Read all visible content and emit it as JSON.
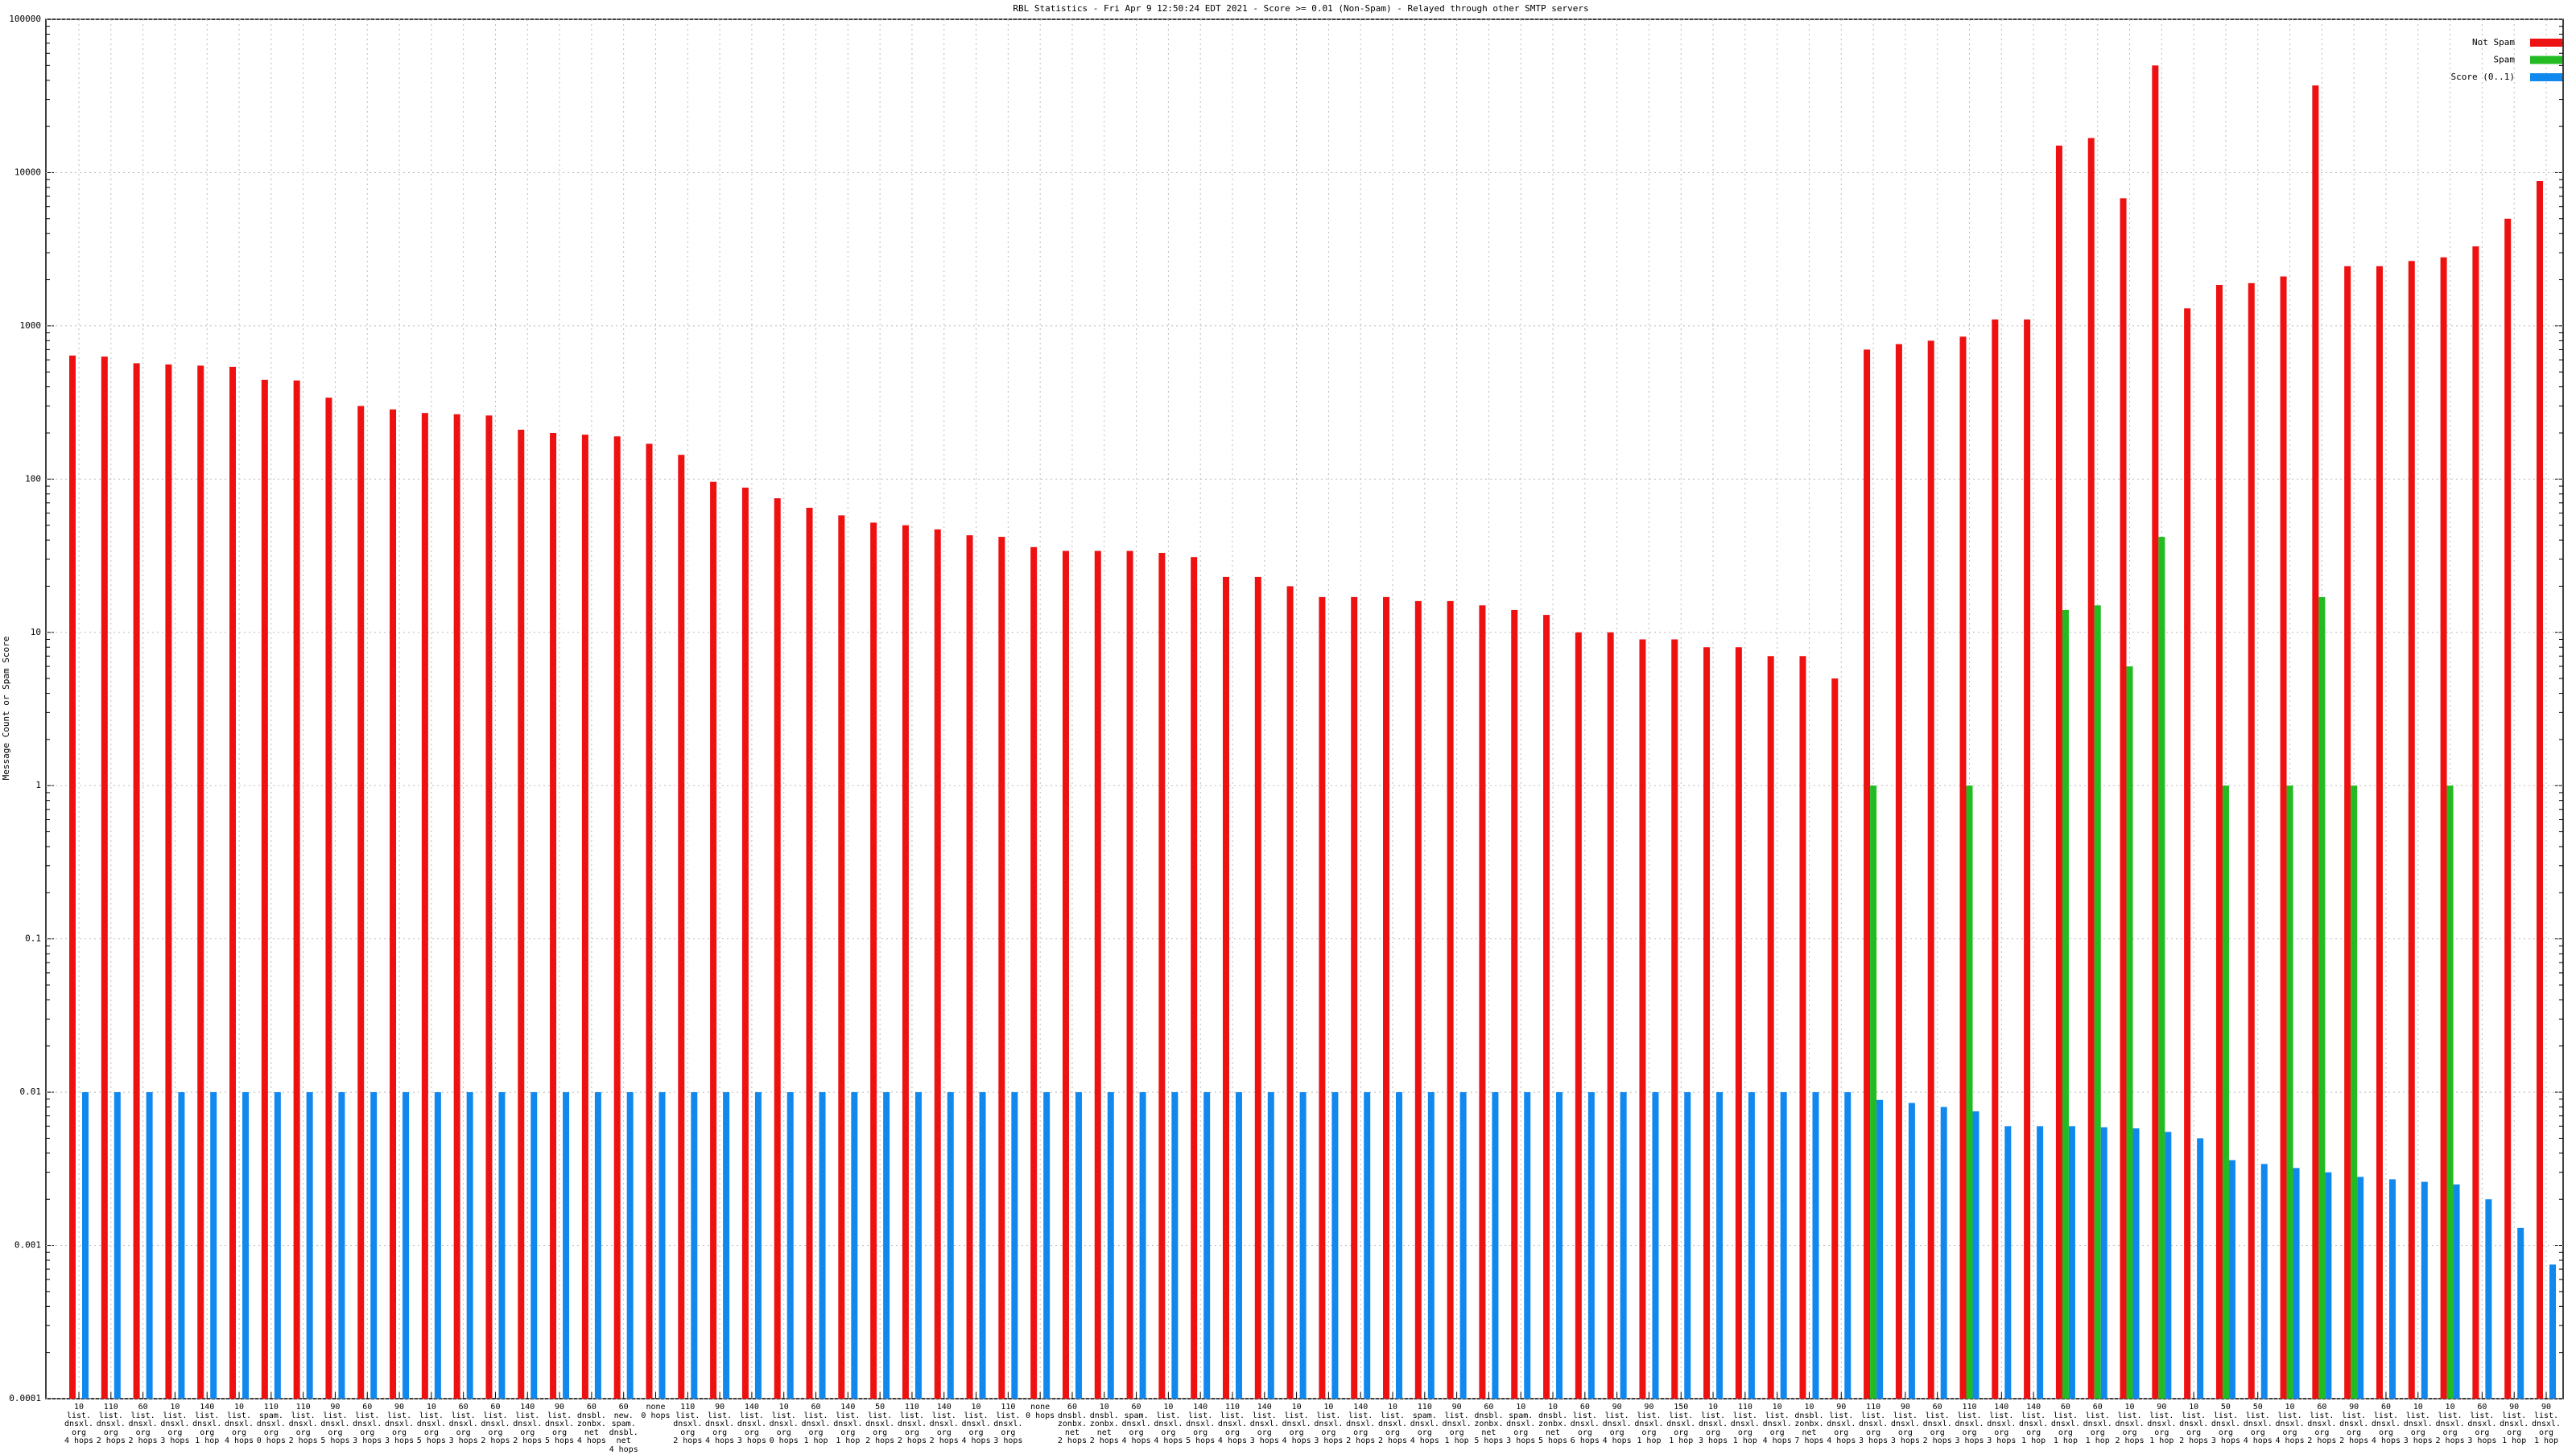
{
  "chart_data": {
    "type": "bar",
    "title": "RBL Statistics - Fri Apr  9 12:50:24 EDT 2021 - Score >= 0.01 (Non-Spam) - Relayed through other SMTP servers",
    "ylabel": "Message Count or Spam Score",
    "log_scale": true,
    "grid": true,
    "legend": "top-right",
    "ylim": [
      0.0001,
      100000
    ],
    "yticks": [
      0.0001,
      0.001,
      0.01,
      0.1,
      1,
      10,
      100,
      1000,
      10000,
      100000
    ],
    "categories": [
      "10\nlist.\ndnsxl.\norg\n4 hops",
      "110\nlist.\ndnsxl.\norg\n2 hops",
      "60\nlist.\ndnsxl.\norg\n2 hops",
      "10\nlist.\ndnsxl.\norg\n3 hops",
      "140\nlist.\ndnsxl.\norg\n1 hop",
      "10\nlist.\ndnsxl.\norg\n4 hops",
      "110\nspam.\ndnsxl.\norg\n0 hops",
      "110\nlist.\ndnsxl.\norg\n2 hops",
      "90\nlist.\ndnsxl.\norg\n5 hops",
      "60\nlist.\ndnsxl.\norg\n3 hops",
      "90\nlist.\ndnsxl.\norg\n3 hops",
      "10\nlist.\ndnsxl.\norg\n5 hops",
      "60\nlist.\ndnsxl.\norg\n3 hops",
      "60\nlist.\ndnsxl.\norg\n2 hops",
      "140\nlist.\ndnsxl.\norg\n2 hops",
      "90\nlist.\ndnsxl.\norg\n5 hops",
      "60\ndnsbl.\nzonbx.\nnet\n4 hops",
      "60\nnew.\nspam.\ndnsbl.\nnet\n4 hops",
      "none\n0 hops",
      "110\nlist.\ndnsxl.\norg\n2 hops",
      "90\nlist.\ndnsxl.\norg\n4 hops",
      "140\nlist.\ndnsxl.\norg\n3 hops",
      "10\nlist.\ndnsxl.\norg\n0 hops",
      "60\nlist.\ndnsxl.\norg\n1 hop",
      "140\nlist.\ndnsxl.\norg\n1 hop",
      "50\nlist.\ndnsxl.\norg\n2 hops",
      "110\nlist.\ndnsxl.\norg\n2 hops",
      "140\nlist.\ndnsxl.\norg\n2 hops",
      "10\nlist.\ndnsxl.\norg\n4 hops",
      "110\nlist.\ndnsxl.\norg\n3 hops",
      "none\n0 hops",
      "60\ndnsbl.\nzonbx.\nnet\n2 hops",
      "10\ndnsbl.\nzonbx.\nnet\n2 hops",
      "60\nspam.\ndnsxl.\norg\n4 hops",
      "10\nlist.\ndnsxl.\norg\n4 hops",
      "140\nlist.\ndnsxl.\norg\n5 hops",
      "110\nlist.\ndnsxl.\norg\n4 hops",
      "140\nlist.\ndnsxl.\norg\n3 hops",
      "10\nlist.\ndnsxl.\norg\n4 hops",
      "10\nlist.\ndnsxl.\norg\n3 hops",
      "140\nlist.\ndnsxl.\norg\n2 hops",
      "10\nlist.\ndnsxl.\norg\n2 hops",
      "110\nspam.\ndnsxl.\norg\n4 hops",
      "90\nlist.\ndnsxl.\norg\n1 hop",
      "60\ndnsbl.\nzonbx.\nnet\n5 hops",
      "10\nspam.\ndnsxl.\norg\n3 hops",
      "10\ndnsbl.\nzonbx.\nnet\n5 hops",
      "60\nlist.\ndnsxl.\norg\n6 hops",
      "90\nlist.\ndnsxl.\norg\n4 hops",
      "90\nlist.\ndnsxl.\norg\n1 hop",
      "150\nlist.\ndnsxl.\norg\n1 hop",
      "10\nlist.\ndnsxl.\norg\n3 hops",
      "110\nlist.\ndnsxl.\norg\n1 hop",
      "10\nlist.\ndnsxl.\norg\n4 hops",
      "10\ndnsbl.\nzonbx.\nnet\n7 hops",
      "90\nlist.\ndnsxl.\norg\n4 hops",
      "110\nlist.\ndnsxl.\norg\n3 hops",
      "90\nlist.\ndnsxl.\norg\n3 hops",
      "60\nlist.\ndnsxl.\norg\n2 hops",
      "110\nlist.\ndnsxl.\norg\n3 hops",
      "140\nlist.\ndnsxl.\norg\n3 hops",
      "140\nlist.\ndnsxl.\norg\n1 hop",
      "60\nlist.\ndnsxl.\norg\n1 hop",
      "60\nlist.\ndnsxl.\norg\n1 hop",
      "10\nlist.\ndnsxl.\norg\n2 hops",
      "90\nlist.\ndnsxl.\norg\n1 hop",
      "10\nlist.\ndnsxl.\norg\n2 hops",
      "50\nlist.\ndnsxl.\norg\n3 hops",
      "50\nlist.\ndnsxl.\norg\n4 hops",
      "10\nlist.\ndnsxl.\norg\n4 hops",
      "60\nlist.\ndnsxl.\norg\n2 hops",
      "90\nlist.\ndnsxl.\norg\n2 hops",
      "60\nlist.\ndnsxl.\norg\n4 hops",
      "10\nlist.\ndnsxl.\norg\n3 hops",
      "10\nlist.\ndnsxl.\norg\n2 hops",
      "60\nlist.\ndnsxl.\norg\n3 hops",
      "90\nlist.\ndnsxl.\norg\n1 hop",
      "90\nlist.\ndnsxl.\norg\n1 hop"
    ],
    "series": [
      {
        "name": "Not Spam",
        "color": "#ee1111",
        "values": [
          640,
          630,
          570,
          560,
          550,
          540,
          445,
          440,
          340,
          300,
          285,
          270,
          265,
          260,
          210,
          200,
          195,
          190,
          170,
          144,
          96,
          88,
          75,
          65,
          58,
          52,
          50,
          47,
          43,
          42,
          36,
          34,
          34,
          34,
          33,
          31,
          23,
          23,
          20,
          17,
          17,
          17,
          16,
          16,
          15,
          14,
          13,
          10,
          10,
          9,
          9,
          8,
          8,
          7,
          7,
          5,
          700,
          760,
          800,
          850,
          1100,
          1100,
          15000,
          16800,
          6800,
          50000,
          1300,
          1850,
          1900,
          2100,
          37000,
          2450,
          2450,
          2650,
          2800,
          3300,
          5000,
          8800
        ]
      },
      {
        "name": "Spam",
        "color": "#22bb22",
        "values": [
          null,
          null,
          null,
          null,
          null,
          null,
          null,
          null,
          null,
          null,
          null,
          null,
          null,
          null,
          null,
          null,
          null,
          null,
          null,
          null,
          null,
          null,
          null,
          null,
          null,
          null,
          null,
          null,
          null,
          null,
          null,
          null,
          null,
          null,
          null,
          null,
          null,
          null,
          null,
          null,
          null,
          null,
          null,
          null,
          null,
          null,
          null,
          null,
          null,
          null,
          null,
          null,
          null,
          null,
          null,
          null,
          1,
          null,
          null,
          1,
          null,
          null,
          14,
          15,
          6,
          42,
          null,
          1,
          null,
          1,
          17,
          1,
          null,
          null,
          1,
          null,
          null,
          null
        ]
      },
      {
        "name": "Score (0..1)",
        "color": "#1188ee",
        "values": [
          0.01,
          0.01,
          0.01,
          0.01,
          0.01,
          0.01,
          0.01,
          0.01,
          0.01,
          0.01,
          0.01,
          0.01,
          0.01,
          0.01,
          0.01,
          0.01,
          0.01,
          0.01,
          0.01,
          0.01,
          0.01,
          0.01,
          0.01,
          0.01,
          0.01,
          0.01,
          0.01,
          0.01,
          0.01,
          0.01,
          0.01,
          0.01,
          0.01,
          0.01,
          0.01,
          0.01,
          0.01,
          0.01,
          0.01,
          0.01,
          0.01,
          0.01,
          0.01,
          0.01,
          0.01,
          0.01,
          0.01,
          0.01,
          0.01,
          0.01,
          0.01,
          0.01,
          0.01,
          0.01,
          0.01,
          0.01,
          0.0089,
          0.0085,
          0.008,
          0.0075,
          0.006,
          0.006,
          0.006,
          0.0059,
          0.0058,
          0.0055,
          0.005,
          0.0036,
          0.0034,
          0.0032,
          0.003,
          0.0028,
          0.0027,
          0.0026,
          0.0025,
          0.002,
          0.0013,
          0.00075
        ]
      }
    ]
  }
}
